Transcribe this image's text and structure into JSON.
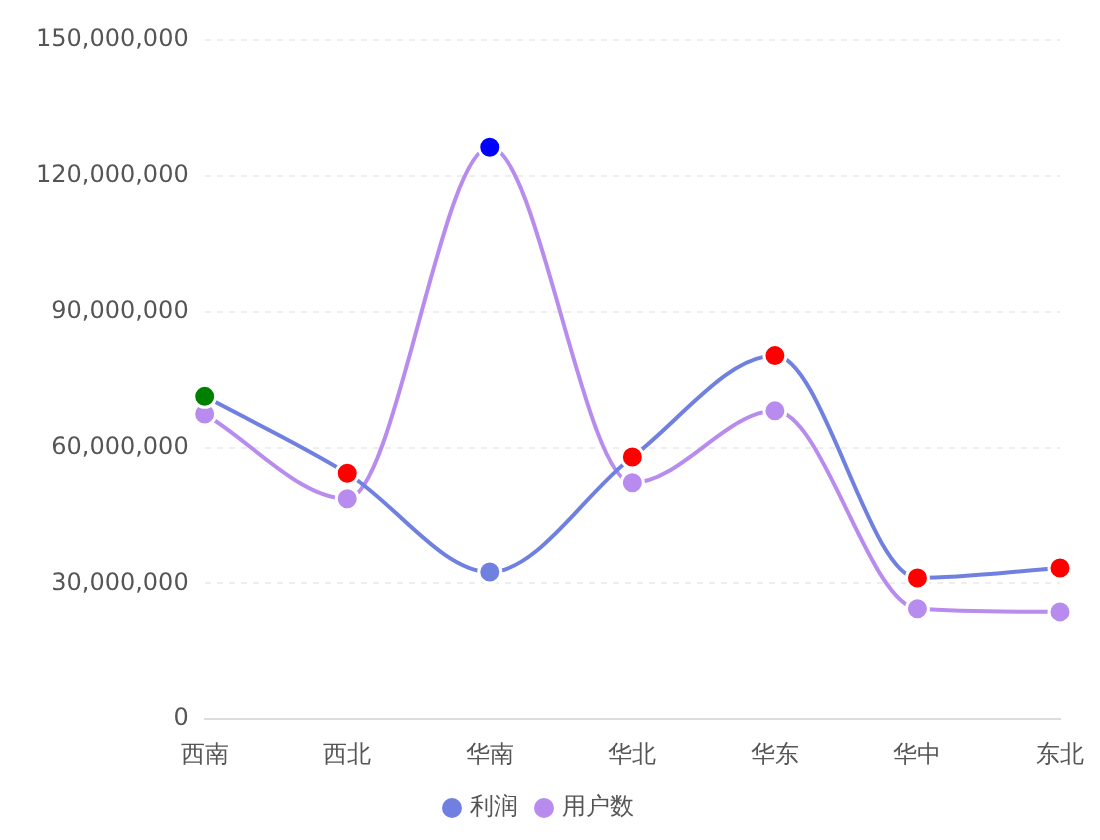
{
  "chart_data": {
    "type": "line",
    "categories": [
      "西南",
      "西北",
      "华南",
      "华北",
      "华东",
      "华中",
      "东北"
    ],
    "series": [
      {
        "name": "利润",
        "color": "#7080e0",
        "colors": [
          "#008000",
          "#ff0000",
          "#7080e0",
          "#ff0000",
          "#ff0000",
          "#ff0000",
          "#ff0000"
        ],
        "values": [
          71300000,
          54300000,
          32500000,
          57900000,
          80300000,
          31200000,
          33400000
        ]
      },
      {
        "name": "用户数",
        "color": "#b88cef",
        "colors": [
          "#b88cef",
          "#b88cef",
          "#0000ff",
          "#b88cef",
          "#b88cef",
          "#b88cef",
          "#b88cef"
        ],
        "values": [
          67400000,
          48700000,
          126300000,
          52200000,
          68100000,
          24400000,
          23700000
        ]
      }
    ],
    "ylim": [
      0,
      150000000
    ],
    "yticks": [
      0,
      {
        "value": 30000000,
        "label": "30,000,000"
      },
      {
        "value": 60000000,
        "label": "60,000,000"
      },
      {
        "value": 90000000,
        "label": "90,000,000"
      },
      {
        "value": 120000000,
        "label": "120,000,000"
      },
      {
        "value": 150000000,
        "label": "150,000,000"
      }
    ],
    "grid": "y",
    "legend": "bottom",
    "marker": "circle",
    "line_style": "solid"
  }
}
